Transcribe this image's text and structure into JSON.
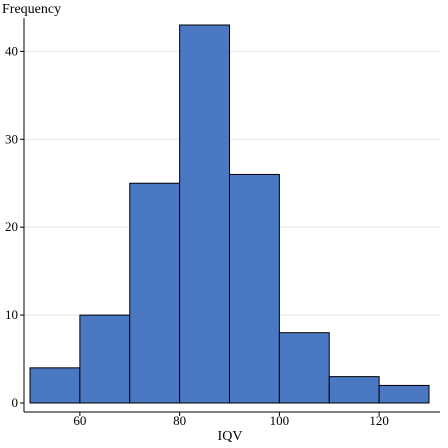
{
  "chart_data": {
    "type": "bar",
    "subtype": "histogram",
    "ylabel": "Frequency",
    "xlabel": "IQV",
    "bins": [
      {
        "start": 50,
        "end": 60,
        "count": 4
      },
      {
        "start": 60,
        "end": 70,
        "count": 10
      },
      {
        "start": 70,
        "end": 80,
        "count": 25
      },
      {
        "start": 80,
        "end": 90,
        "count": 43
      },
      {
        "start": 90,
        "end": 100,
        "count": 26
      },
      {
        "start": 100,
        "end": 110,
        "count": 8
      },
      {
        "start": 110,
        "end": 120,
        "count": 3
      },
      {
        "start": 120,
        "end": 130,
        "count": 2
      }
    ],
    "xlim": [
      50,
      130
    ],
    "ylim": [
      0,
      43
    ],
    "xticks": [
      60,
      80,
      100,
      120
    ],
    "yticks": [
      0,
      10,
      20,
      30,
      40
    ],
    "grid": true,
    "bar_color": "#4a78c2"
  }
}
